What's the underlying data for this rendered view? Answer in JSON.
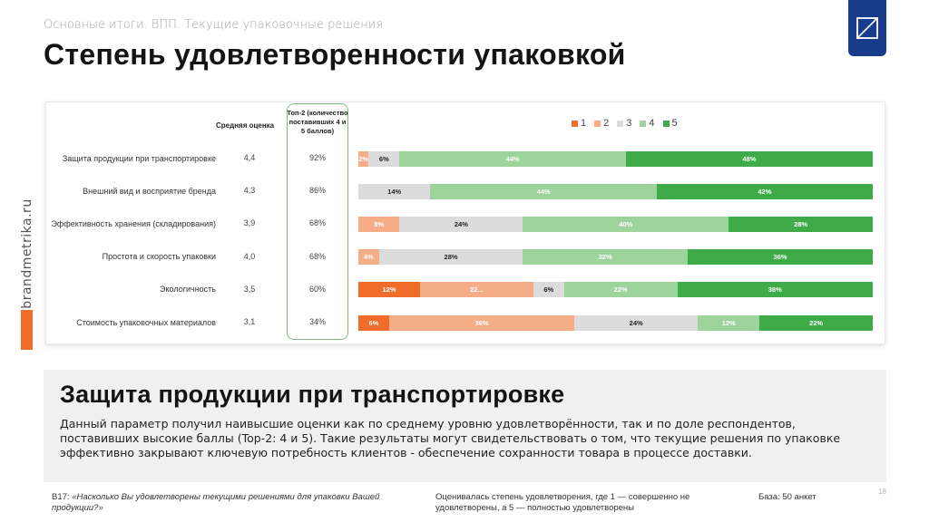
{
  "header": {
    "subtitle": "Основные итоги. ВПП. Текущие упаковочные решения",
    "title": "Степень удовлетворенности упаковкой"
  },
  "brand": {
    "vertical_text": "brandmetrika.ru",
    "logo_icon": "resize-square-icon"
  },
  "colors": {
    "s1": "#ef6c2b",
    "s2": "#f5ad87",
    "s3": "#dcdcdc",
    "s4": "#9cd49c",
    "s5": "#3eab48",
    "accent": "#183b8c"
  },
  "chart_data": {
    "type": "bar",
    "stacked": true,
    "orientation": "horizontal",
    "column_headers": {
      "average": "Средняя оценка",
      "top2": "Топ-2 (количество поставивших 4 и 5 баллов)"
    },
    "legend": [
      "1",
      "2",
      "3",
      "4",
      "5"
    ],
    "legend_position": "top-right",
    "categories": [
      "Защита продукции при транспортировке",
      "Внешний вид и восприятие бренда",
      "Эффективность хранения (складирования)",
      "Простота и скорость упаковки",
      "Экологичность",
      "Стоимость упаковочных материалов"
    ],
    "average": [
      "4,4",
      "4,3",
      "3,9",
      "4,0",
      "3,5",
      "3,1"
    ],
    "top2": [
      "92%",
      "86%",
      "68%",
      "68%",
      "60%",
      "34%"
    ],
    "series": [
      {
        "name": "1",
        "values": [
          0,
          0,
          0,
          0,
          12,
          6
        ],
        "labels": [
          "",
          "",
          "",
          "",
          "12%",
          "6%"
        ]
      },
      {
        "name": "2",
        "values": [
          2,
          0,
          8,
          4,
          22,
          36
        ],
        "labels": [
          "2%",
          "",
          "8%",
          "4%",
          "22...",
          "36%"
        ]
      },
      {
        "name": "3",
        "values": [
          6,
          14,
          24,
          28,
          6,
          24
        ],
        "labels": [
          "6%",
          "14%",
          "24%",
          "28%",
          "6%",
          "24%"
        ]
      },
      {
        "name": "4",
        "values": [
          44,
          44,
          40,
          32,
          22,
          12
        ],
        "labels": [
          "44%",
          "44%",
          "40%",
          "32%",
          "22%",
          "12%"
        ]
      },
      {
        "name": "5",
        "values": [
          48,
          42,
          28,
          36,
          38,
          22
        ],
        "labels": [
          "48%",
          "42%",
          "28%",
          "36%",
          "38%",
          "22%"
        ]
      }
    ],
    "xlim": [
      0,
      100
    ]
  },
  "summary": {
    "heading": "Защита продукции при транспортировке",
    "text": "Данный параметр получил наивысшие оценки как по среднему уровню удовлетворённости, так и по доле респондентов, поставивших высокие баллы (Top-2: 4 и 5). Такие результаты могут свидетельствовать о том, что текущие решения по упаковке эффективно закрывают ключевую потребность клиентов - обеспечение сохранности товара в процессе доставки."
  },
  "footer": {
    "question_code": "B17: ",
    "question": "«Насколько Вы удовлетворены текущими решениями для упаковки Вашей продукции?»",
    "scale_note": "Оценивалась степень удовлетворения, где 1 — совершенно не удовлетворены, а 5 — полностью удовлетворены",
    "base": "База: 50 анкет",
    "page_number": "18"
  }
}
